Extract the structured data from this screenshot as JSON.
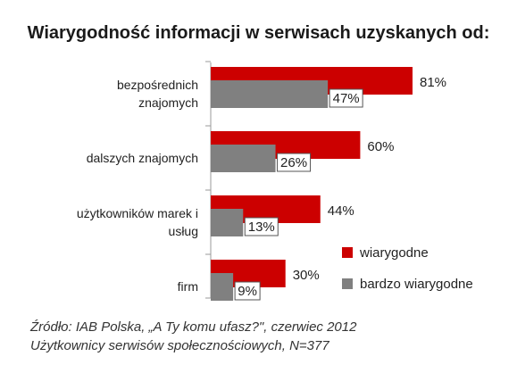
{
  "title": "Wiarygodność informacji w serwisach uzyskanych od:",
  "chart_data": {
    "type": "bar",
    "orientation": "horizontal",
    "categories": [
      [
        "bezpośrednich",
        "znajomych"
      ],
      [
        "dalszych znajomych"
      ],
      [
        "użytkowników marek i",
        "usług"
      ],
      [
        "firm"
      ]
    ],
    "series": [
      {
        "name": "wiarygodne",
        "color": "#cc0000",
        "values": [
          81,
          60,
          44,
          30
        ],
        "labels": [
          "81%",
          "60%",
          "44%",
          "30%"
        ]
      },
      {
        "name": "bardzo wiarygodne",
        "color": "#808080",
        "values": [
          47,
          26,
          13,
          9
        ],
        "labels": [
          "47%",
          "26%",
          "13%",
          "9%"
        ]
      }
    ],
    "xlim": [
      0,
      100
    ],
    "grid": false,
    "legend_position": "bottom-right"
  },
  "source": {
    "line1": "Źródło: IAB Polska, „A Ty komu ufasz?\", czerwiec 2012",
    "line2": "Użytkownicy serwisów społecznościowych, N=377"
  }
}
